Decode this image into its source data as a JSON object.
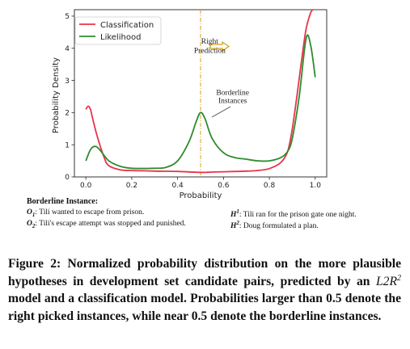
{
  "chart_data": {
    "type": "line",
    "title": "",
    "xlabel": "Probability",
    "ylabel": "Probability Density",
    "xlim": [
      -0.05,
      1.05
    ],
    "ylim": [
      0,
      5.2
    ],
    "xticks": [
      "0.0",
      "0.2",
      "0.4",
      "0.6",
      "0.8",
      "1.0"
    ],
    "yticks": [
      "0",
      "1",
      "2",
      "3",
      "4",
      "5"
    ],
    "grid": false,
    "legend_position": "top-left",
    "series": [
      {
        "name": "Classification",
        "color": "#e8334a",
        "x": [
          0.0,
          0.01,
          0.02,
          0.03,
          0.05,
          0.08,
          0.1,
          0.15,
          0.2,
          0.25,
          0.3,
          0.4,
          0.5,
          0.55,
          0.6,
          0.7,
          0.75,
          0.8,
          0.85,
          0.88,
          0.9,
          0.92,
          0.94,
          0.96,
          0.98,
          0.99
        ],
        "y": [
          2.1,
          2.2,
          2.1,
          1.8,
          1.25,
          0.6,
          0.35,
          0.22,
          0.2,
          0.19,
          0.18,
          0.17,
          0.14,
          0.15,
          0.16,
          0.18,
          0.2,
          0.26,
          0.45,
          0.8,
          1.5,
          2.5,
          3.6,
          4.6,
          5.1,
          5.2
        ]
      },
      {
        "name": "Likelihood",
        "color": "#2e8b2e",
        "x": [
          0.0,
          0.02,
          0.04,
          0.06,
          0.1,
          0.15,
          0.2,
          0.3,
          0.35,
          0.4,
          0.45,
          0.48,
          0.5,
          0.52,
          0.55,
          0.6,
          0.65,
          0.7,
          0.75,
          0.8,
          0.85,
          0.88,
          0.9,
          0.93,
          0.96,
          0.98,
          1.0
        ],
        "y": [
          0.5,
          0.85,
          0.95,
          0.85,
          0.5,
          0.33,
          0.27,
          0.27,
          0.3,
          0.5,
          1.1,
          1.7,
          2.0,
          1.8,
          1.2,
          0.75,
          0.6,
          0.55,
          0.5,
          0.5,
          0.6,
          0.8,
          1.2,
          2.5,
          4.3,
          4.1,
          3.1
        ]
      }
    ],
    "annotations": [
      {
        "text": "Right",
        "x": 0.54,
        "y": 4.15
      },
      {
        "text": "Prediction",
        "x": 0.54,
        "y": 3.85
      },
      {
        "text": "Borderline",
        "x": 0.64,
        "y": 2.55
      },
      {
        "text": "Instances",
        "x": 0.64,
        "y": 2.3
      }
    ],
    "reference_line_x": 0.5
  },
  "example": {
    "heading": "Borderline Instance:",
    "o1_label": "O",
    "o1_sub": "1",
    "o1_text": "Tili wanted to escape from prison.",
    "o2_label": "O",
    "o2_sub": "2",
    "o2_text": "Tili's escape attempt was stopped and punished.",
    "h1_label": "H",
    "h1_sup": "1",
    "h1_text": "Tili ran for the prison gate one night.",
    "h2_label": "H",
    "h2_sup": "2",
    "h2_text": "Doug formulated a plan."
  },
  "caption": {
    "part1": "Figure 2: Normalized probability distribution on the more plausible hypotheses in development set candidate pairs, predicted by an ",
    "model": "L2R",
    "model_sup": "2",
    "part2": " model and a classification model. Probabilities larger than 0.5 denote the right picked instances, while near 0.5 denote the borderline instances."
  }
}
